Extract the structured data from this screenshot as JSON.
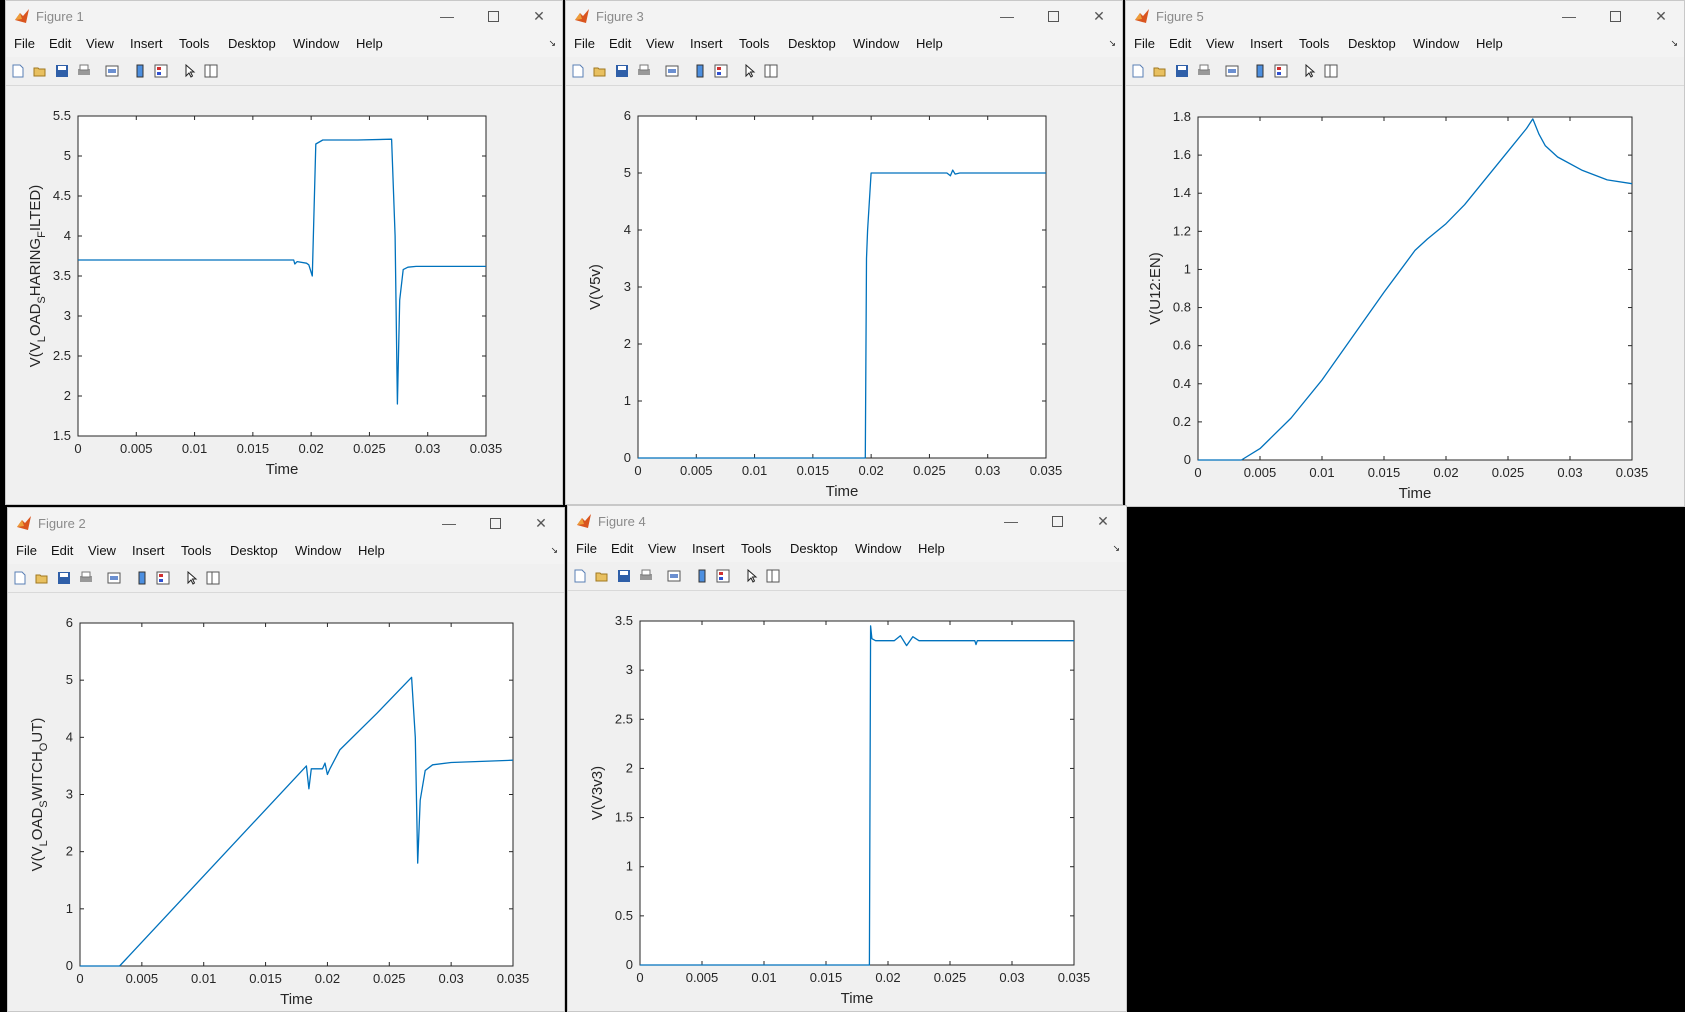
{
  "menus": [
    "File",
    "Edit",
    "View",
    "Insert",
    "Tools",
    "Desktop",
    "Window",
    "Help"
  ],
  "colors": {
    "line": "#0072bd",
    "axes": "#262626"
  },
  "windows": [
    {
      "title": "Figure 1",
      "chart_data": {
        "type": "line",
        "xlabel": "Time",
        "ylabel_parts": [
          "V(V",
          "L",
          "OAD",
          "S",
          "HARING",
          "F",
          "ILTED)"
        ],
        "xlim": [
          0,
          0.035
        ],
        "ylim": [
          1.5,
          5.5
        ],
        "xticks": [
          0,
          0.005,
          0.01,
          0.015,
          0.02,
          0.025,
          0.03,
          0.035
        ],
        "xtick_labels": [
          "0",
          "0.005",
          "0.01",
          "0.015",
          "0.02",
          "0.025",
          "0.03",
          "0.035"
        ],
        "yticks": [
          1.5,
          2,
          2.5,
          3,
          3.5,
          4,
          4.5,
          5,
          5.5
        ],
        "ytick_labels": [
          "1.5",
          "2",
          "2.5",
          "3",
          "3.5",
          "4",
          "4.5",
          "5",
          "5.5"
        ],
        "series": [
          {
            "x": [
              0,
              0.0185,
              0.0186,
              0.0188,
              0.0196,
              0.0198,
              0.0201,
              0.0201,
              0.0204,
              0.021,
              0.024,
              0.0269,
              0.0272,
              0.0274,
              0.0276,
              0.0279,
              0.0283,
              0.029,
              0.035
            ],
            "y": [
              3.7,
              3.7,
              3.65,
              3.68,
              3.66,
              3.64,
              3.5,
              3.5,
              5.15,
              5.2,
              5.2,
              5.21,
              4.0,
              1.9,
              3.2,
              3.58,
              3.61,
              3.62,
              3.62
            ]
          }
        ]
      }
    },
    {
      "title": "Figure 3",
      "chart_data": {
        "type": "line",
        "xlabel": "Time",
        "ylabel_parts": [
          "V(V5v)"
        ],
        "xlim": [
          0,
          0.035
        ],
        "ylim": [
          0,
          6
        ],
        "xticks": [
          0,
          0.005,
          0.01,
          0.015,
          0.02,
          0.025,
          0.03,
          0.035
        ],
        "xtick_labels": [
          "0",
          "0.005",
          "0.01",
          "0.015",
          "0.02",
          "0.025",
          "0.03",
          "0.035"
        ],
        "yticks": [
          0,
          1,
          2,
          3,
          4,
          5,
          6
        ],
        "ytick_labels": [
          "0",
          "1",
          "2",
          "3",
          "4",
          "5",
          "6"
        ],
        "series": [
          {
            "x": [
              0,
              0.0195,
              0.0196,
              0.0197,
              0.02,
              0.0265,
              0.0268,
              0.027,
              0.0272,
              0.0276,
              0.035
            ],
            "y": [
              0,
              0,
              3.5,
              4.0,
              5.0,
              5.0,
              4.95,
              5.05,
              4.98,
              5.0,
              5.0
            ]
          }
        ]
      }
    },
    {
      "title": "Figure 5",
      "chart_data": {
        "type": "line",
        "xlabel": "Time",
        "ylabel_parts": [
          "V(U12:EN)"
        ],
        "xlim": [
          0,
          0.035
        ],
        "ylim": [
          0,
          1.8
        ],
        "xticks": [
          0,
          0.005,
          0.01,
          0.015,
          0.02,
          0.025,
          0.03,
          0.035
        ],
        "xtick_labels": [
          "0",
          "0.005",
          "0.01",
          "0.015",
          "0.02",
          "0.025",
          "0.03",
          "0.035"
        ],
        "yticks": [
          0,
          0.2,
          0.4,
          0.6,
          0.8,
          1,
          1.2,
          1.4,
          1.6,
          1.8
        ],
        "ytick_labels": [
          "0",
          "0.2",
          "0.4",
          "0.6",
          "0.8",
          "1",
          "1.2",
          "1.4",
          "1.6",
          "1.8"
        ],
        "series": [
          {
            "x": [
              0,
              0.0035,
              0.005,
              0.0075,
              0.01,
              0.0125,
              0.015,
              0.0175,
              0.0185,
              0.02,
              0.0215,
              0.023,
              0.025,
              0.0265,
              0.027,
              0.0275,
              0.028,
              0.029,
              0.031,
              0.033,
              0.035
            ],
            "y": [
              0,
              0,
              0.06,
              0.22,
              0.42,
              0.65,
              0.88,
              1.1,
              1.16,
              1.24,
              1.34,
              1.46,
              1.62,
              1.74,
              1.79,
              1.71,
              1.65,
              1.59,
              1.52,
              1.47,
              1.45
            ]
          }
        ]
      }
    },
    {
      "title": "Figure 2",
      "chart_data": {
        "type": "line",
        "xlabel": "Time",
        "ylabel_parts": [
          "V(V",
          "L",
          "OAD",
          "S",
          "WITCH",
          "O",
          "UT)"
        ],
        "xlim": [
          0,
          0.035
        ],
        "ylim": [
          0,
          6
        ],
        "xticks": [
          0,
          0.005,
          0.01,
          0.015,
          0.02,
          0.025,
          0.03,
          0.035
        ],
        "xtick_labels": [
          "0",
          "0.005",
          "0.01",
          "0.015",
          "0.02",
          "0.025",
          "0.03",
          "0.035"
        ],
        "yticks": [
          0,
          1,
          2,
          3,
          4,
          5,
          6
        ],
        "ytick_labels": [
          "0",
          "1",
          "2",
          "3",
          "4",
          "5",
          "6"
        ],
        "series": [
          {
            "x": [
              0,
              0.0032,
              0.0183,
              0.0185,
              0.0187,
              0.0196,
              0.0198,
              0.02,
              0.0202,
              0.021,
              0.024,
              0.0268,
              0.0271,
              0.0273,
              0.0275,
              0.0279,
              0.0285,
              0.03,
              0.035
            ],
            "y": [
              0,
              0,
              3.5,
              3.1,
              3.45,
              3.45,
              3.55,
              3.35,
              3.45,
              3.78,
              4.42,
              5.05,
              4.0,
              1.8,
              2.9,
              3.42,
              3.52,
              3.56,
              3.6
            ]
          }
        ]
      }
    },
    {
      "title": "Figure 4",
      "chart_data": {
        "type": "line",
        "xlabel": "Time",
        "ylabel_parts": [
          "V(V3v3)"
        ],
        "xlim": [
          0,
          0.035
        ],
        "ylim": [
          0,
          3.5
        ],
        "xticks": [
          0,
          0.005,
          0.01,
          0.015,
          0.02,
          0.025,
          0.03,
          0.035
        ],
        "xtick_labels": [
          "0",
          "0.005",
          "0.01",
          "0.015",
          "0.02",
          "0.025",
          "0.03",
          "0.035"
        ],
        "yticks": [
          0,
          0.5,
          1,
          1.5,
          2,
          2.5,
          3,
          3.5
        ],
        "ytick_labels": [
          "0",
          "0.5",
          "1",
          "1.5",
          "2",
          "2.5",
          "3",
          "3.5"
        ],
        "series": [
          {
            "x": [
              0,
              0.0185,
              0.0186,
              0.0187,
              0.019,
              0.0205,
              0.021,
              0.0215,
              0.022,
              0.0225,
              0.027,
              0.0271,
              0.0272,
              0.035
            ],
            "y": [
              0,
              0,
              3.45,
              3.32,
              3.3,
              3.3,
              3.35,
              3.25,
              3.34,
              3.3,
              3.3,
              3.26,
              3.3,
              3.3
            ]
          }
        ]
      }
    }
  ]
}
